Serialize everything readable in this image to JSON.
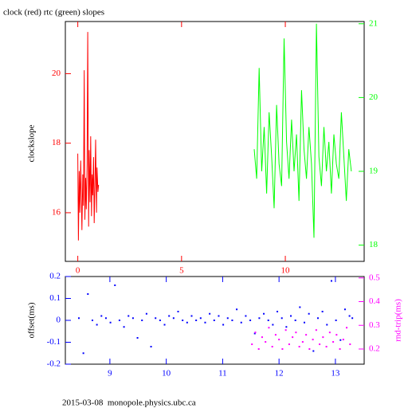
{
  "chart_data": [
    {
      "type": "line",
      "title": "clock (red) rtc (green) slopes",
      "ylabel": "clockslope",
      "xlim": [
        -0.6,
        13.8
      ],
      "ylim": [
        14.6,
        21.5
      ],
      "y2lim": [
        17.78,
        21.03
      ],
      "xticks": [
        0,
        5,
        10
      ],
      "yticks": [
        16,
        18,
        20
      ],
      "y2ticks": [
        18,
        19,
        20,
        21
      ],
      "axis_colors": {
        "x": "#ff0000",
        "y": "#ff0000",
        "y2": "#00ff00"
      },
      "series": [
        {
          "color": "#ff0000",
          "x": [
            0,
            0.03,
            0.07,
            0.1,
            0.14,
            0.17,
            0.2,
            0.24,
            0.27,
            0.31,
            0.34,
            0.38,
            0.41,
            0.45,
            0.48,
            0.52,
            0.55,
            0.59,
            0.62,
            0.66,
            0.69,
            0.72,
            0.76,
            0.79,
            0.83,
            0.86,
            0.9,
            0.93,
            0.97,
            1.0
          ],
          "values": [
            17.7,
            15.2,
            17.2,
            16.0,
            17.5,
            16.4,
            15.5,
            17.1,
            16.2,
            20.1,
            15.8,
            17.0,
            16.1,
            17.4,
            21.2,
            15.6,
            17.8,
            16.3,
            18.2,
            15.9,
            17.1,
            16.5,
            17.6,
            15.7,
            16.9,
            18.1,
            16.0,
            17.3,
            16.6,
            16.8
          ]
        },
        {
          "color": "#00ff00",
          "axis": "y2",
          "x": [
            8.5,
            8.62,
            8.74,
            8.86,
            8.98,
            9.1,
            9.22,
            9.34,
            9.46,
            9.58,
            9.7,
            9.82,
            9.94,
            10.06,
            10.18,
            10.3,
            10.42,
            10.54,
            10.66,
            10.78,
            10.9,
            11.02,
            11.14,
            11.26,
            11.38,
            11.5,
            11.62,
            11.74,
            11.86,
            11.98,
            12.1,
            12.22,
            12.34,
            12.46,
            12.58,
            12.7,
            12.82,
            12.94,
            13.06,
            13.18
          ],
          "values": [
            19.3,
            18.9,
            20.4,
            19.0,
            19.6,
            18.7,
            19.8,
            19.2,
            18.5,
            19.9,
            19.1,
            18.8,
            20.8,
            19.4,
            18.9,
            19.7,
            19.0,
            19.5,
            18.6,
            20.1,
            19.3,
            18.9,
            19.6,
            19.1,
            18.1,
            21.0,
            19.2,
            18.8,
            19.6,
            19.0,
            19.4,
            18.7,
            19.5,
            19.1,
            18.9,
            19.8,
            19.2,
            18.6,
            19.3,
            19.0
          ]
        }
      ]
    },
    {
      "type": "scatter",
      "ylabel": "offset(ms)",
      "y2label": "rnd-trip(ms)",
      "xlim": [
        8.21,
        13.51
      ],
      "ylim": [
        -0.2,
        0.2
      ],
      "y2lim": [
        0.136,
        0.506
      ],
      "xticks": [
        9,
        10,
        11,
        12,
        13
      ],
      "yticks": [
        -0.2,
        -0.1,
        0,
        0.1,
        0.2
      ],
      "y2ticks": [
        0.2,
        0.3,
        0.4,
        0.5
      ],
      "axis_colors": {
        "x": "#0000ff",
        "y": "#0000ff",
        "y2": "#ff00ff"
      },
      "series": [
        {
          "color": "#0000ff",
          "x": [
            8.45,
            8.53,
            8.61,
            8.69,
            8.77,
            8.85,
            8.93,
            9.01,
            9.09,
            9.17,
            9.25,
            9.33,
            9.41,
            9.49,
            9.57,
            9.65,
            9.73,
            9.81,
            9.89,
            9.97,
            10.05,
            10.13,
            10.21,
            10.29,
            10.37,
            10.45,
            10.53,
            10.61,
            10.69,
            10.77,
            10.85,
            10.93,
            11.01,
            11.09,
            11.17,
            11.25,
            11.33,
            11.41,
            11.49,
            11.57,
            11.65,
            11.73,
            11.81,
            11.89,
            11.97,
            12.05,
            12.13,
            12.21,
            12.29,
            12.37,
            12.45,
            12.53,
            12.61,
            12.69,
            12.77,
            12.85,
            12.93,
            13.01,
            13.09,
            13.17,
            13.25,
            13.3
          ],
          "values": [
            0.01,
            -0.15,
            0.12,
            0.0,
            -0.02,
            0.02,
            0.01,
            -0.01,
            0.16,
            0.0,
            -0.03,
            0.02,
            0.01,
            -0.08,
            0.0,
            0.03,
            -0.12,
            0.01,
            0.0,
            -0.02,
            0.02,
            0.01,
            0.04,
            0.0,
            -0.01,
            0.02,
            0.0,
            0.01,
            -0.01,
            0.03,
            0.0,
            0.02,
            -0.02,
            0.01,
            0.0,
            0.05,
            -0.01,
            0.02,
            0.0,
            -0.06,
            0.01,
            0.03,
            0.0,
            -0.02,
            0.04,
            0.01,
            -0.03,
            0.02,
            0.0,
            0.06,
            -0.01,
            0.03,
            -0.14,
            0.01,
            0.04,
            -0.02,
            0.18,
            0.0,
            -0.09,
            0.05,
            0.02,
            0.01
          ]
        },
        {
          "color": "#ff00ff",
          "axis": "y2",
          "x": [
            11.52,
            11.58,
            11.64,
            11.7,
            11.76,
            11.82,
            11.88,
            11.94,
            12.0,
            12.06,
            12.12,
            12.18,
            12.24,
            12.3,
            12.36,
            12.42,
            12.48,
            12.54,
            12.6,
            12.66,
            12.72,
            12.78,
            12.84,
            12.9,
            12.96,
            13.02,
            13.08,
            13.14,
            13.2,
            13.26
          ],
          "values": [
            0.22,
            0.27,
            0.2,
            0.25,
            0.23,
            0.29,
            0.21,
            0.26,
            0.24,
            0.2,
            0.28,
            0.22,
            0.25,
            0.27,
            0.21,
            0.23,
            0.26,
            0.2,
            0.24,
            0.28,
            0.22,
            0.25,
            0.21,
            0.27,
            0.23,
            0.26,
            0.2,
            0.24,
            0.29,
            0.22
          ]
        }
      ]
    }
  ],
  "footer": "2015-03-08  monopole.physics.ubc.ca"
}
